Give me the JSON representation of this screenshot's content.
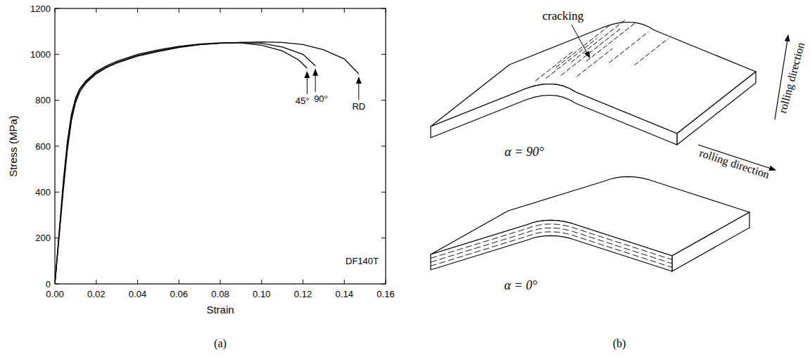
{
  "chart_data": {
    "type": "line",
    "x_label": "Strain",
    "y_label": "Stress (MPa)",
    "annotation": "DF140T",
    "xlim": [
      0,
      0.16
    ],
    "xticks": [
      {
        "value": 0,
        "label": "0.00"
      },
      {
        "value": 0.02,
        "label": "0.02"
      },
      {
        "value": 0.04,
        "label": "0.04"
      },
      {
        "value": 0.06,
        "label": "0.06"
      },
      {
        "value": 0.08,
        "label": "0.08"
      },
      {
        "value": 0.1,
        "label": "0.10"
      },
      {
        "value": 0.12,
        "label": "0.12"
      },
      {
        "value": 0.14,
        "label": "0.14"
      },
      {
        "value": 0.16,
        "label": "0.16"
      }
    ],
    "ylim": [
      0,
      1200
    ],
    "yticks": [
      0,
      200,
      400,
      600,
      800,
      1000,
      1200
    ],
    "series": [
      {
        "name": "45°",
        "color": "#000000",
        "x": [
          0,
          0.002,
          0.004,
          0.006,
          0.008,
          0.01,
          0.012,
          0.015,
          0.02,
          0.025,
          0.03,
          0.04,
          0.05,
          0.06,
          0.07,
          0.08,
          0.09,
          0.1,
          0.11,
          0.118,
          0.122
        ],
        "values": [
          0,
          220,
          440,
          620,
          740,
          810,
          850,
          885,
          925,
          950,
          970,
          1000,
          1020,
          1035,
          1045,
          1050,
          1050,
          1040,
          1015,
          975,
          940
        ]
      },
      {
        "name": "90°",
        "color": "#000000",
        "x": [
          0,
          0.002,
          0.004,
          0.006,
          0.008,
          0.01,
          0.012,
          0.015,
          0.02,
          0.025,
          0.03,
          0.04,
          0.05,
          0.06,
          0.07,
          0.08,
          0.09,
          0.1,
          0.11,
          0.12,
          0.126
        ],
        "values": [
          0,
          210,
          420,
          600,
          725,
          800,
          845,
          880,
          920,
          945,
          965,
          995,
          1015,
          1032,
          1043,
          1049,
          1052,
          1048,
          1032,
          1000,
          950
        ]
      },
      {
        "name": "RD",
        "color": "#000000",
        "x": [
          0,
          0.002,
          0.004,
          0.006,
          0.008,
          0.01,
          0.012,
          0.015,
          0.02,
          0.025,
          0.03,
          0.04,
          0.05,
          0.06,
          0.07,
          0.08,
          0.09,
          0.1,
          0.11,
          0.12,
          0.13,
          0.14,
          0.147
        ],
        "values": [
          0,
          200,
          400,
          580,
          710,
          790,
          835,
          875,
          915,
          942,
          962,
          992,
          1012,
          1030,
          1042,
          1048,
          1052,
          1054,
          1052,
          1043,
          1020,
          980,
          915
        ]
      }
    ]
  },
  "panels": [
    "(a)",
    "(b)"
  ],
  "diagram": {
    "cracking_label": "cracking",
    "plates": [
      {
        "alpha_label": "α = 90°",
        "direction_label": "rolling direction"
      },
      {
        "alpha_label": "α = 0°",
        "direction_label": "rolling direction"
      }
    ]
  }
}
